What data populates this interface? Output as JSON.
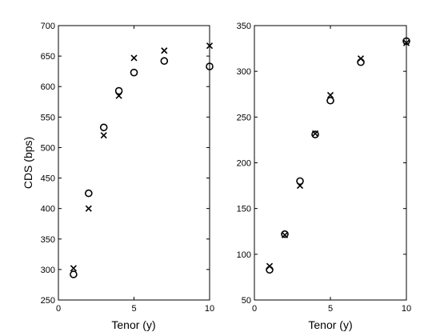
{
  "chart_data": [
    {
      "type": "scatter",
      "title": "",
      "xlabel": "Tenor (y)",
      "ylabel": "CDS (bps)",
      "xlim": [
        0,
        10
      ],
      "ylim": [
        250,
        700
      ],
      "xticks": [
        0,
        5,
        10
      ],
      "yticks": [
        250,
        300,
        350,
        400,
        450,
        500,
        550,
        600,
        650,
        700
      ],
      "grid": false,
      "series": [
        {
          "marker": "circle",
          "x": [
            1,
            2,
            3,
            4,
            5,
            7,
            10
          ],
          "y": [
            292,
            425,
            533,
            593,
            623,
            642,
            633
          ]
        },
        {
          "marker": "x",
          "x": [
            1,
            2,
            3,
            4,
            5,
            7,
            10
          ],
          "y": [
            302,
            400,
            520,
            585,
            647,
            659,
            667
          ]
        }
      ]
    },
    {
      "type": "scatter",
      "title": "",
      "xlabel": "Tenor (y)",
      "ylabel": "",
      "xlim": [
        0,
        10
      ],
      "ylim": [
        50,
        350
      ],
      "xticks": [
        0,
        5,
        10
      ],
      "yticks": [
        50,
        100,
        150,
        200,
        250,
        300,
        350
      ],
      "grid": false,
      "series": [
        {
          "marker": "circle",
          "x": [
            1,
            2,
            3,
            4,
            5,
            7,
            10
          ],
          "y": [
            83,
            122,
            180,
            231,
            268,
            310,
            333
          ]
        },
        {
          "marker": "x",
          "x": [
            1,
            2,
            3,
            4,
            5,
            7,
            10
          ],
          "y": [
            87,
            121,
            175,
            232,
            274,
            314,
            331
          ]
        }
      ]
    }
  ]
}
